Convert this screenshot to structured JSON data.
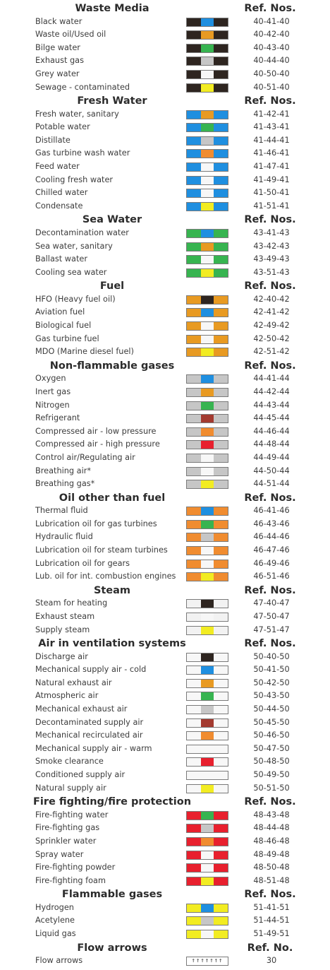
{
  "colors": {
    "white": "#f7f7f7",
    "black": "#2e2520",
    "blue": "#1f8fe0",
    "green": "#37b450",
    "yellow": "#f2ec22",
    "orange": "#f08c30",
    "grey": "#c6c6c6",
    "red": "#e8202e",
    "maroon": "#a33a30",
    "goldbrown": "#e89a22",
    "light": "#f2f2f2"
  },
  "sections": [
    {
      "title": "Waste Media",
      "ref_header": "Ref. Nos.",
      "rows": [
        {
          "label": "Black water",
          "ref": "40-41-40",
          "outer": "black",
          "mid": "blue"
        },
        {
          "label": "Waste oil/Used oil",
          "ref": "40-42-40",
          "outer": "black",
          "mid": "goldbrown"
        },
        {
          "label": "Bilge water",
          "ref": "40-43-40",
          "outer": "black",
          "mid": "green"
        },
        {
          "label": "Exhaust gas",
          "ref": "40-44-40",
          "outer": "black",
          "mid": "grey"
        },
        {
          "label": "Grey water",
          "ref": "40-50-40",
          "outer": "black",
          "mid": "white"
        },
        {
          "label": "Sewage - contaminated",
          "ref": "40-51-40",
          "outer": "black",
          "mid": "yellow"
        }
      ]
    },
    {
      "title": "Fresh Water",
      "ref_header": "Ref. Nos.",
      "rows": [
        {
          "label": "Fresh water, sanitary",
          "ref": "41-42-41",
          "outer": "blue",
          "mid": "goldbrown"
        },
        {
          "label": "Potable water",
          "ref": "41-43-41",
          "outer": "blue",
          "mid": "green"
        },
        {
          "label": "Distillate",
          "ref": "41-44-41",
          "outer": "blue",
          "mid": "grey"
        },
        {
          "label": "Gas turbine wash water",
          "ref": "41-46-41",
          "outer": "blue",
          "mid": "orange"
        },
        {
          "label": "Feed water",
          "ref": "41-47-41",
          "outer": "blue",
          "mid": "white"
        },
        {
          "label": "Cooling fresh water",
          "ref": "41-49-41",
          "outer": "blue",
          "mid": "white"
        },
        {
          "label": "Chilled water",
          "ref": "41-50-41",
          "outer": "blue",
          "mid": "white"
        },
        {
          "label": "Condensate",
          "ref": "41-51-41",
          "outer": "blue",
          "mid": "yellow"
        }
      ]
    },
    {
      "title": "Sea Water",
      "ref_header": "Ref. Nos.",
      "rows": [
        {
          "label": "Decontamination water",
          "ref": "43-41-43",
          "outer": "green",
          "mid": "blue"
        },
        {
          "label": "Sea water, sanitary",
          "ref": "43-42-43",
          "outer": "green",
          "mid": "goldbrown"
        },
        {
          "label": "Ballast water",
          "ref": "43-49-43",
          "outer": "green",
          "mid": "white"
        },
        {
          "label": "Cooling sea water",
          "ref": "43-51-43",
          "outer": "green",
          "mid": "yellow"
        }
      ]
    },
    {
      "title": "Fuel",
      "ref_header": "Ref. Nos.",
      "rows": [
        {
          "label": "HFO (Heavy fuel oil)",
          "ref": "42-40-42",
          "outer": "goldbrown",
          "mid": "black"
        },
        {
          "label": "Aviation fuel",
          "ref": "42-41-42",
          "outer": "goldbrown",
          "mid": "blue"
        },
        {
          "label": "Biological fuel",
          "ref": "42-49-42",
          "outer": "goldbrown",
          "mid": "white"
        },
        {
          "label": "Gas turbine fuel",
          "ref": "42-50-42",
          "outer": "goldbrown",
          "mid": "white"
        },
        {
          "label": "MDO (Marine diesel fuel)",
          "ref": "42-51-42",
          "outer": "goldbrown",
          "mid": "yellow"
        }
      ]
    },
    {
      "title": "Non-flammable gases",
      "ref_header": "Ref. Nos.",
      "rows": [
        {
          "label": "Oxygen",
          "ref": "44-41-44",
          "outer": "grey",
          "mid": "blue"
        },
        {
          "label": "Inert gas",
          "ref": "44-42-44",
          "outer": "grey",
          "mid": "goldbrown"
        },
        {
          "label": "Nitrogen",
          "ref": "44-43-44",
          "outer": "grey",
          "mid": "green"
        },
        {
          "label": "Refrigerant",
          "ref": "44-45-44",
          "outer": "grey",
          "mid": "maroon"
        },
        {
          "label": "Compressed air - low pressure",
          "ref": "44-46-44",
          "outer": "grey",
          "mid": "orange"
        },
        {
          "label": "Compressed air - high pressure",
          "ref": "44-48-44",
          "outer": "grey",
          "mid": "red"
        },
        {
          "label": "Control air/Regulating air",
          "ref": "44-49-44",
          "outer": "grey",
          "mid": "white"
        },
        {
          "label": "Breathing air*",
          "ref": "44-50-44",
          "outer": "grey",
          "mid": "white"
        },
        {
          "label": "Breathing gas*",
          "ref": "44-51-44",
          "outer": "grey",
          "mid": "yellow"
        }
      ]
    },
    {
      "title": "Oil other than fuel",
      "ref_header": "Ref. Nos.",
      "rows": [
        {
          "label": "Thermal fluid",
          "ref": "46-41-46",
          "outer": "orange",
          "mid": "blue"
        },
        {
          "label": "Lubrication oil for gas turbines",
          "ref": "46-43-46",
          "outer": "orange",
          "mid": "green"
        },
        {
          "label": "Hydraulic fluid",
          "ref": "46-44-46",
          "outer": "orange",
          "mid": "grey"
        },
        {
          "label": "Lubrication oil for steam turbines",
          "ref": "46-47-46",
          "outer": "orange",
          "mid": "white"
        },
        {
          "label": "Lubrication oil for gears",
          "ref": "46-49-46",
          "outer": "orange",
          "mid": "white"
        },
        {
          "label": "Lub. oil for int. combustion engines",
          "ref": "46-51-46",
          "outer": "orange",
          "mid": "yellow"
        }
      ]
    },
    {
      "title": "Steam",
      "ref_header": "Ref. Nos.",
      "rows": [
        {
          "label": "Steam for heating",
          "ref": "47-40-47",
          "outer": "light",
          "mid": "black"
        },
        {
          "label": "Exhaust steam",
          "ref": "47-50-47",
          "outer": "light",
          "mid": "white"
        },
        {
          "label": "Supply steam",
          "ref": "47-51-47",
          "outer": "light",
          "mid": "yellow"
        }
      ]
    },
    {
      "title": "Air in ventilation systems",
      "ref_header": "Ref. Nos.",
      "rows": [
        {
          "label": "Discharge air",
          "ref": "50-40-50",
          "outer": "white",
          "mid": "black"
        },
        {
          "label": "Mechanical supply air - cold",
          "ref": "50-41-50",
          "outer": "white",
          "mid": "blue"
        },
        {
          "label": "Natural exhaust air",
          "ref": "50-42-50",
          "outer": "white",
          "mid": "goldbrown"
        },
        {
          "label": "Atmospheric air",
          "ref": "50-43-50",
          "outer": "white",
          "mid": "green"
        },
        {
          "label": "Mechanical exhaust air",
          "ref": "50-44-50",
          "outer": "white",
          "mid": "grey"
        },
        {
          "label": "Decontaminated supply air",
          "ref": "50-45-50",
          "outer": "white",
          "mid": "maroon"
        },
        {
          "label": "Mechanical recirculated air",
          "ref": "50-46-50",
          "outer": "white",
          "mid": "orange"
        },
        {
          "label": "Mechanical supply air - warm",
          "ref": "50-47-50",
          "outer": "white",
          "mid": "white"
        },
        {
          "label": "Smoke clearance",
          "ref": "50-48-50",
          "outer": "white",
          "mid": "red"
        },
        {
          "label": "Conditioned supply air",
          "ref": "50-49-50",
          "outer": "white",
          "mid": "white"
        },
        {
          "label": "Natural supply air",
          "ref": "50-51-50",
          "outer": "white",
          "mid": "yellow"
        }
      ]
    },
    {
      "title": "Fire fighting/fire protection",
      "ref_header": "Ref. Nos.",
      "rows": [
        {
          "label": "Fire-fighting water",
          "ref": "48-43-48",
          "outer": "red",
          "mid": "green"
        },
        {
          "label": "Fire-fighting gas",
          "ref": "48-44-48",
          "outer": "red",
          "mid": "grey"
        },
        {
          "label": "Sprinkler water",
          "ref": "48-46-48",
          "outer": "red",
          "mid": "orange"
        },
        {
          "label": "Spray water",
          "ref": "48-49-48",
          "outer": "red",
          "mid": "white"
        },
        {
          "label": "Fire-fighting powder",
          "ref": "48-50-48",
          "outer": "red",
          "mid": "white"
        },
        {
          "label": "Fire-fighting foam",
          "ref": "48-51-48",
          "outer": "red",
          "mid": "yellow"
        }
      ]
    },
    {
      "title": "Flammable gases",
      "ref_header": "Ref. Nos.",
      "rows": [
        {
          "label": "Hydrogen",
          "ref": "51-41-51",
          "outer": "yellow",
          "mid": "blue"
        },
        {
          "label": "Acetylene",
          "ref": "51-44-51",
          "outer": "yellow",
          "mid": "grey"
        },
        {
          "label": "Liquid gas",
          "ref": "51-49-51",
          "outer": "yellow",
          "mid": "white"
        }
      ]
    }
  ],
  "flow": {
    "title": "Flow arrows",
    "ref_header": "Ref. No.",
    "label": "Flow arrows",
    "ref": "30",
    "arrows": "↑↑↑↑↑↑↑"
  }
}
